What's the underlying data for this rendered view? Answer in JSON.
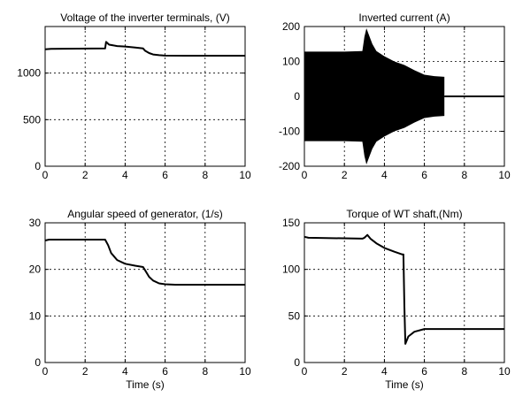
{
  "chart_data": [
    {
      "type": "line",
      "title": "Voltage of the inverter terminals, (V)",
      "xlabel": "",
      "xlim": [
        0,
        10
      ],
      "ylim": [
        0,
        1500
      ],
      "xticks": [
        0,
        2,
        4,
        6,
        8,
        10
      ],
      "yticks": [
        0,
        500,
        1000
      ],
      "grid": true,
      "series": [
        {
          "style": "line",
          "x": [
            0,
            0.3,
            3.0,
            3.05,
            3.2,
            3.6,
            4.0,
            4.5,
            4.9,
            5.0,
            5.2,
            5.4,
            5.7,
            6.0,
            7.0,
            10
          ],
          "y": [
            1255,
            1260,
            1265,
            1335,
            1305,
            1290,
            1285,
            1275,
            1265,
            1240,
            1215,
            1200,
            1192,
            1188,
            1187,
            1187
          ]
        }
      ]
    },
    {
      "type": "line",
      "title": "Inverted current (A)",
      "xlabel": "",
      "xlim": [
        0,
        10
      ],
      "ylim": [
        -200,
        200
      ],
      "xticks": [
        0,
        2,
        4,
        6,
        8,
        10
      ],
      "yticks": [
        -200,
        -100,
        0,
        100,
        200
      ],
      "grid": true,
      "series": [
        {
          "style": "envelope",
          "x": [
            0,
            2.0,
            2.9,
            3.0,
            3.1,
            3.2,
            3.4,
            3.6,
            4.0,
            4.5,
            5.0,
            5.5,
            6.0,
            6.5,
            7.0
          ],
          "upper": [
            128,
            128,
            130,
            170,
            195,
            180,
            150,
            130,
            115,
            100,
            90,
            75,
            62,
            58,
            56
          ],
          "lower": [
            -128,
            -128,
            -130,
            -170,
            -195,
            -180,
            -150,
            -130,
            -115,
            -100,
            -90,
            -75,
            -62,
            -58,
            -56
          ]
        },
        {
          "style": "line",
          "x": [
            7.0,
            10
          ],
          "y": [
            0,
            0
          ]
        }
      ]
    },
    {
      "type": "line",
      "title": "Angular speed of generator, (1/s)",
      "xlabel": "Time (s)",
      "xlim": [
        0,
        10
      ],
      "ylim": [
        0,
        30
      ],
      "xticks": [
        0,
        2,
        4,
        6,
        8,
        10
      ],
      "yticks": [
        0,
        10,
        20,
        30
      ],
      "grid": true,
      "series": [
        {
          "style": "line",
          "x": [
            0,
            0.2,
            3.0,
            3.15,
            3.3,
            3.6,
            4.0,
            4.5,
            4.9,
            5.0,
            5.2,
            5.4,
            5.7,
            6.0,
            6.5,
            10
          ],
          "y": [
            26.2,
            26.4,
            26.4,
            25.2,
            23.5,
            22.0,
            21.2,
            20.8,
            20.5,
            19.8,
            18.4,
            17.6,
            17.0,
            16.8,
            16.7,
            16.7
          ]
        }
      ]
    },
    {
      "type": "line",
      "title": "Torque of WT shaft,(Nm)",
      "xlabel": "Time (s)",
      "xlim": [
        0,
        10
      ],
      "ylim": [
        0,
        150
      ],
      "xticks": [
        0,
        2,
        4,
        6,
        8,
        10
      ],
      "yticks": [
        0,
        50,
        100,
        150
      ],
      "grid": true,
      "series": [
        {
          "style": "line",
          "x": [
            0,
            0.2,
            2.9,
            3.0,
            3.15,
            3.3,
            3.6,
            4.0,
            4.5,
            4.9,
            4.95,
            5.0,
            5.05,
            5.2,
            5.5,
            6.0,
            7.0,
            10
          ],
          "y": [
            135,
            134,
            133,
            134,
            137,
            133,
            128,
            123,
            119,
            116,
            116,
            60,
            20,
            28,
            33,
            36,
            36,
            36
          ]
        }
      ]
    }
  ]
}
